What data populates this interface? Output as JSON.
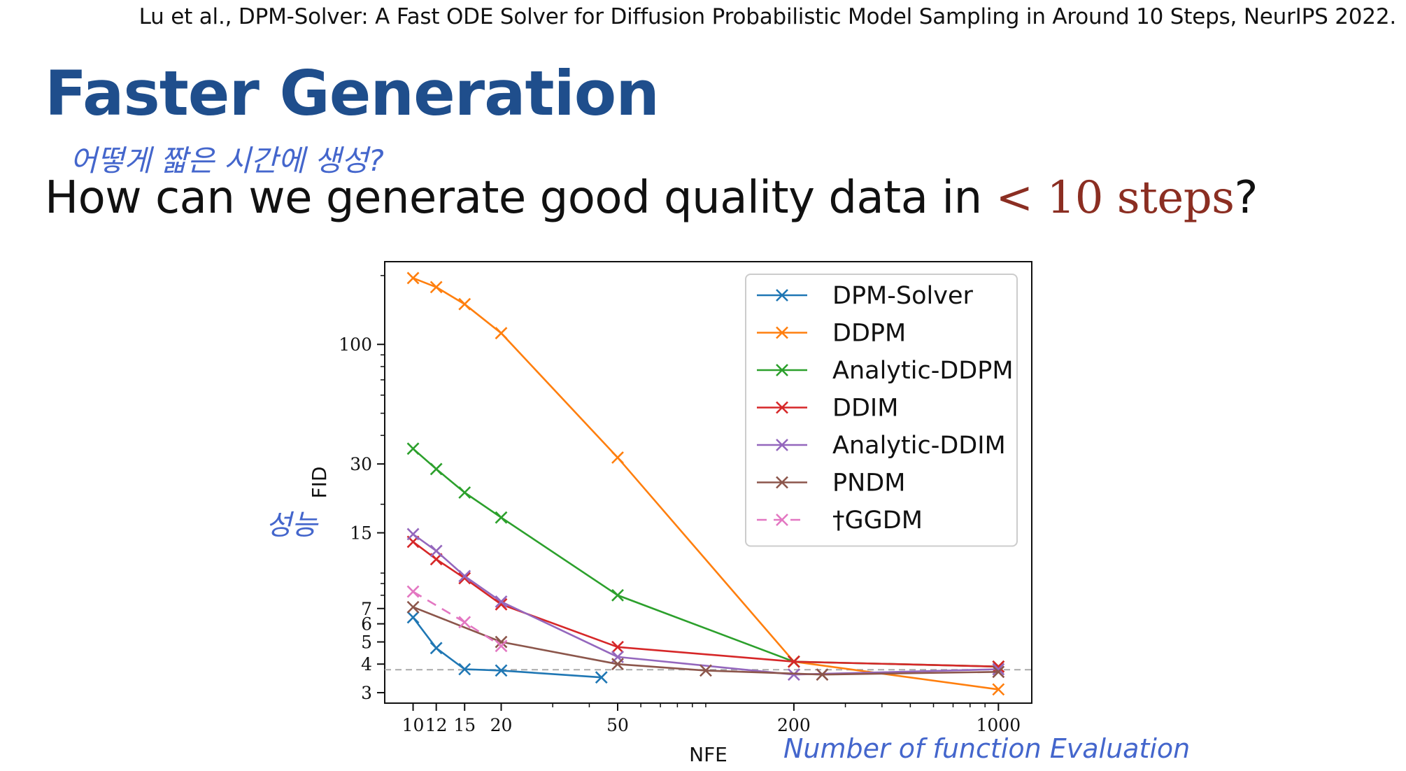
{
  "citation": "Lu et al., DPM-Solver: A Fast ODE Solver for Diffusion Probabilistic Model Sampling in Around 10 Steps, NeurIPS 2022.",
  "title": "Faster Generation",
  "handwritten": {
    "korean_note": "어떻게 짧은 시간에 생성?",
    "fid_note": "성능",
    "nfe_note": "Number of function Evaluation"
  },
  "question": {
    "before": "How can we generate good quality data in ",
    "highlight": "< 10 steps",
    "after": "?"
  },
  "colors": {
    "title": "#1f4e8c",
    "highlight": "#8b2e22",
    "annotation": "#4466cc",
    "DPM-Solver": "#1f77b4",
    "DDPM": "#ff7f0e",
    "Analytic-DDPM": "#2ca02c",
    "DDIM": "#d62728",
    "Analytic-DDIM": "#9467bd",
    "PNDM": "#8c564b",
    "GGDM": "#e377c2"
  },
  "chart_data": {
    "type": "line",
    "xlabel": "NFE",
    "ylabel": "FID",
    "xscale": "log",
    "yscale": "log",
    "xlim": [
      8,
      1300
    ],
    "ylim": [
      2.7,
      230
    ],
    "xticks": [
      10,
      12,
      15,
      20,
      50,
      200,
      1000
    ],
    "yticks": [
      3,
      4,
      5,
      6,
      7,
      15,
      30,
      100
    ],
    "grid": false,
    "legend": "top-right",
    "reference_line": {
      "y": 3.78,
      "style": "dashed",
      "color": "#aaaaaa"
    },
    "series": [
      {
        "name": "DPM-Solver",
        "style": "solid",
        "x": [
          10,
          12,
          15,
          20,
          44
        ],
        "y": [
          6.4,
          4.7,
          3.8,
          3.75,
          3.5
        ]
      },
      {
        "name": "DDPM",
        "style": "solid",
        "x": [
          10,
          12,
          15,
          20,
          50,
          200,
          1000
        ],
        "y": [
          195,
          178,
          150,
          112,
          32,
          4.1,
          3.1
        ]
      },
      {
        "name": "Analytic-DDPM",
        "style": "solid",
        "x": [
          10,
          12,
          15,
          20,
          50,
          200,
          1000
        ],
        "y": [
          35,
          28.5,
          22.5,
          17.5,
          8.0,
          4.1,
          3.9
        ]
      },
      {
        "name": "DDIM",
        "style": "solid",
        "x": [
          10,
          12,
          15,
          20,
          50,
          200,
          1000
        ],
        "y": [
          13.7,
          11.5,
          9.5,
          7.3,
          4.75,
          4.1,
          3.9
        ]
      },
      {
        "name": "Analytic-DDIM",
        "style": "solid",
        "x": [
          10,
          12,
          15,
          20,
          50,
          200,
          1000
        ],
        "y": [
          14.8,
          12.5,
          9.7,
          7.5,
          4.3,
          3.6,
          3.8
        ]
      },
      {
        "name": "PNDM",
        "style": "solid",
        "x": [
          10,
          20,
          50,
          100,
          250,
          1000
        ],
        "y": [
          7.1,
          5.0,
          4.0,
          3.75,
          3.6,
          3.7
        ]
      },
      {
        "name": "†GGDM",
        "style": "dashed",
        "x": [
          10,
          15,
          20
        ],
        "y": [
          8.3,
          6.1,
          4.8
        ]
      }
    ]
  }
}
